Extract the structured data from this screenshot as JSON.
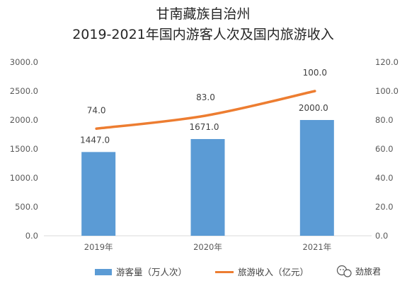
{
  "chart_data": {
    "type": "bar+line",
    "title": "甘南藏族自治州",
    "subtitle": "2019-2021年国内游客人次及国内旅游收入",
    "categories": [
      "2019年",
      "2020年",
      "2021年"
    ],
    "series": [
      {
        "name": "游客量（万人次）",
        "type": "bar",
        "axis": "left",
        "color": "#5B9BD5",
        "values": [
          1447.0,
          1671.0,
          2000.0
        ],
        "labels": [
          "1447.0",
          "1671.0",
          "2000.0"
        ]
      },
      {
        "name": "旅游收入（亿元）",
        "type": "line",
        "axis": "right",
        "color": "#ED7D31",
        "values": [
          74.0,
          83.0,
          100.0
        ],
        "labels": [
          "74.0",
          "83.0",
          "100.0"
        ]
      }
    ],
    "left_axis": {
      "ylim": [
        0,
        3000
      ],
      "ticks": [
        "0.0",
        "500.0",
        "1000.0",
        "1500.0",
        "2000.0",
        "2500.0",
        "3000.0"
      ]
    },
    "right_axis": {
      "ylim": [
        0,
        120
      ],
      "ticks": [
        "0.0",
        "20.0",
        "40.0",
        "60.0",
        "80.0",
        "100.0",
        "120.0"
      ]
    },
    "grid": false,
    "legend_position": "bottom"
  },
  "watermark": {
    "icon": "wechat-icon",
    "text": "劲旅君"
  }
}
